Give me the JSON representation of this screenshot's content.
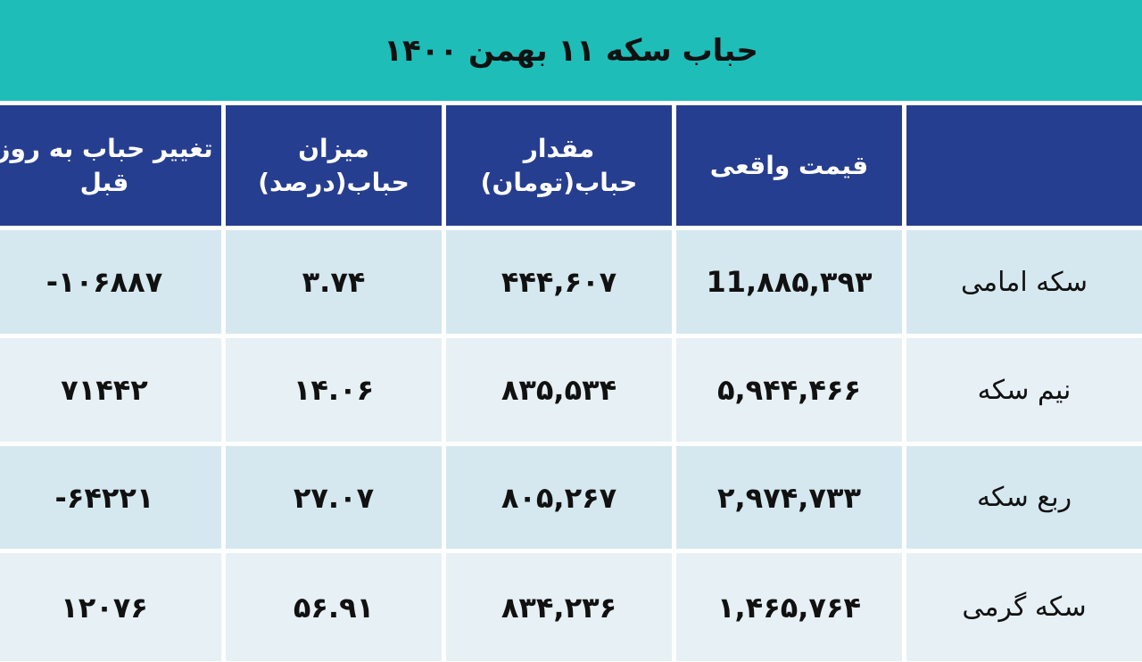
{
  "title": "حباب سکه ۱۱ بهمن ۱۴۰۰",
  "headers": [
    "",
    "قیمت واقعی",
    "مقدار حباب(تومان)",
    "میزان حباب(درصد)",
    "تغییر حباب به روز قبل"
  ],
  "rows": [
    {
      "name": "سکه امامی",
      "values": [
        "11,۸۸۵,۳۹۳",
        "۴۴۴,۶۰۷",
        "۳.۷۴",
        "-۱۰۶۸۸۷"
      ]
    },
    {
      "name": "نیم سکه",
      "values": [
        "۵,۹۴۴,۴۶۶",
        "۸۳۵,۵۳۴",
        "۱۴.۰۶",
        "۷۱۴۴۲"
      ]
    },
    {
      "name": "ربع سکه",
      "values": [
        "۲,۹۷۴,۷۳۳",
        "۸۰۵,۲۶۷",
        "۲۷.۰۷",
        "-۶۴۲۲۱"
      ]
    },
    {
      "name": "سکه گرمی",
      "values": [
        "۱,۴۶۵,۷۶۴",
        "۸۳۴,۲۳۶",
        "۵۶.۹۱",
        "۱۲۰۷۶"
      ]
    }
  ],
  "colors": {
    "title_bg": "#1ebdb8",
    "header_bg": "#263e8f",
    "row_odd": "#d5e8ef",
    "row_even": "#e7f0f4"
  }
}
